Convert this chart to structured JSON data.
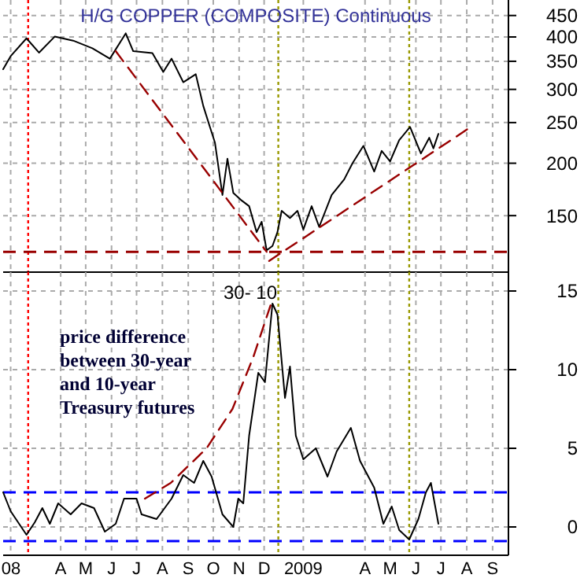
{
  "chart_data": [
    {
      "type": "line",
      "title": "H/G COPPER (COMPOSITE) Continuous",
      "log": "y",
      "grid": true,
      "tick_labels": "y",
      "xlim": [
        "2008-02-06",
        "2009-10-04"
      ],
      "xticks": [
        {
          "value": "2008-02-15",
          "label": null
        },
        {
          "value": "2008-04-15",
          "label": null
        },
        {
          "value": "2008-05-15",
          "label": null
        },
        {
          "value": "2008-06-15",
          "label": null
        },
        {
          "value": "2008-07-15",
          "label": null
        },
        {
          "value": "2008-08-15",
          "label": null
        },
        {
          "value": "2008-09-15",
          "label": null
        },
        {
          "value": "2008-10-15",
          "label": null
        },
        {
          "value": "2008-11-15",
          "label": null
        },
        {
          "value": "2008-12-15",
          "label": null
        },
        {
          "value": "2009-01-31",
          "label": null
        },
        {
          "value": "2009-04-15",
          "label": null
        },
        {
          "value": "2009-05-15",
          "label": null
        },
        {
          "value": "2009-06-15",
          "label": null
        },
        {
          "value": "2009-07-15",
          "label": null
        },
        {
          "value": "2009-08-15",
          "label": null
        },
        {
          "value": "2009-09-15",
          "label": null
        }
      ],
      "ylim": [
        110,
        490
      ],
      "yticks": [
        150,
        200,
        250,
        300,
        350,
        400,
        450
      ],
      "series": [
        {
          "color": "#000000",
          "x": [
            "2008-02-06",
            "2008-02-15",
            "2008-03-05",
            "2008-03-20",
            "2008-04-08",
            "2008-04-30",
            "2008-05-23",
            "2008-06-13",
            "2008-07-02",
            "2008-07-11",
            "2008-08-03",
            "2008-08-16",
            "2008-08-26",
            "2008-09-09",
            "2008-09-24",
            "2008-10-03",
            "2008-10-11",
            "2008-10-17",
            "2008-10-26",
            "2008-11-01",
            "2008-11-08",
            "2008-11-18",
            "2008-11-27",
            "2008-12-06",
            "2008-12-12",
            "2008-12-18",
            "2008-12-25",
            "2008-12-31",
            "2009-01-05",
            "2009-01-15",
            "2009-01-24",
            "2009-01-31",
            "2009-02-10",
            "2009-02-19",
            "2009-03-06",
            "2009-03-21",
            "2009-03-31",
            "2009-04-13",
            "2009-04-26",
            "2009-05-05",
            "2009-05-15",
            "2009-05-26",
            "2009-06-08",
            "2009-06-21",
            "2009-07-01",
            "2009-07-06",
            "2009-07-12"
          ],
          "values": [
            335,
            360,
            397,
            367,
            401,
            392,
            376,
            355,
            408,
            370,
            366,
            330,
            355,
            312,
            326,
            274,
            244,
            224,
            168,
            205,
            170,
            163,
            158,
            137,
            145,
            124,
            127,
            137,
            154,
            148,
            154,
            139,
            158,
            141,
            168,
            183,
            200,
            220,
            191,
            214,
            202,
            227,
            244,
            211,
            230,
            217,
            235
          ]
        },
        {
          "type": "line",
          "color": "#990000",
          "line_style": "dashed",
          "x": [
            "2008-06-20",
            "2008-12-18"
          ],
          "values": [
            370,
            123
          ]
        },
        {
          "type": "line",
          "color": "#990000",
          "line_style": "dashed",
          "x": [
            "2008-12-21",
            "2009-08-17"
          ],
          "values": [
            117,
            242
          ]
        }
      ],
      "ref_lines": [
        {
          "axis": "x",
          "value": "2008-03-07",
          "color": "#ff0000",
          "line_style": "dotted"
        },
        {
          "axis": "x",
          "value": "2009-01-01",
          "color": "#999900",
          "line_style": "dotted"
        },
        {
          "axis": "x",
          "value": "2009-06-07",
          "color": "#999900",
          "line_style": "dotted"
        },
        {
          "axis": "y",
          "value": 123,
          "color": "#990000",
          "line_style": "dashed"
        }
      ]
    },
    {
      "type": "line",
      "grid": true,
      "annotations": [
        "30- 10",
        "price difference between 30-year and 10-year Treasury futures"
      ],
      "xlim": [
        "2008-02-06",
        "2009-10-04"
      ],
      "xticks": [
        {
          "value": "2008-02-15",
          "label": "08"
        },
        {
          "value": "2008-04-15",
          "label": "A"
        },
        {
          "value": "2008-05-15",
          "label": "M"
        },
        {
          "value": "2008-06-15",
          "label": "J"
        },
        {
          "value": "2008-07-15",
          "label": "J"
        },
        {
          "value": "2008-08-15",
          "label": "A"
        },
        {
          "value": "2008-09-15",
          "label": "S"
        },
        {
          "value": "2008-10-15",
          "label": "O"
        },
        {
          "value": "2008-11-15",
          "label": "N"
        },
        {
          "value": "2008-12-15",
          "label": "D"
        },
        {
          "value": "2009-01-31",
          "label": "2009"
        },
        {
          "value": "2009-04-15",
          "label": "A"
        },
        {
          "value": "2009-05-15",
          "label": "M"
        },
        {
          "value": "2009-06-15",
          "label": "J"
        },
        {
          "value": "2009-07-15",
          "label": "J"
        },
        {
          "value": "2009-08-15",
          "label": "A"
        },
        {
          "value": "2009-09-15",
          "label": "S"
        }
      ],
      "ylim": [
        -1.8,
        16.2
      ],
      "yticks": [
        0,
        5,
        10,
        15
      ],
      "series": [
        {
          "color": "#000000",
          "x": [
            "2008-02-06",
            "2008-02-15",
            "2008-03-05",
            "2008-03-15",
            "2008-03-24",
            "2008-04-02",
            "2008-04-12",
            "2008-04-27",
            "2008-05-10",
            "2008-05-25",
            "2008-06-07",
            "2008-06-20",
            "2008-06-30",
            "2008-07-15",
            "2008-07-21",
            "2008-08-08",
            "2008-08-26",
            "2008-09-09",
            "2008-09-22",
            "2008-10-03",
            "2008-10-13",
            "2008-10-26",
            "2008-11-08",
            "2008-11-14",
            "2008-11-20",
            "2008-11-27",
            "2008-12-08",
            "2008-12-16",
            "2008-12-25",
            "2008-12-31",
            "2009-01-09",
            "2009-01-15",
            "2009-01-22",
            "2009-01-31",
            "2009-02-15",
            "2009-03-01",
            "2009-03-12",
            "2009-03-29",
            "2009-04-09",
            "2009-04-26",
            "2009-05-07",
            "2009-05-17",
            "2009-05-26",
            "2009-06-07",
            "2009-06-18",
            "2009-06-27",
            "2009-07-03",
            "2009-07-12"
          ],
          "values": [
            2.2,
            1.0,
            -0.5,
            0.3,
            1.2,
            0.2,
            1.5,
            0.8,
            1.5,
            1.2,
            -0.3,
            0.2,
            1.8,
            1.8,
            0.8,
            0.5,
            1.8,
            3.3,
            2.8,
            4.2,
            3.2,
            0.8,
            0.0,
            1.8,
            1.5,
            5.8,
            9.8,
            9.2,
            14.2,
            13.5,
            8.2,
            10.2,
            5.8,
            4.3,
            5.0,
            3.2,
            4.8,
            6.3,
            4.2,
            2.5,
            0.2,
            1.3,
            -0.2,
            -0.8,
            0.5,
            2.2,
            2.8,
            0.2
          ]
        },
        {
          "type": "line",
          "color": "#990000",
          "line_style": "dashed",
          "x": [
            "2008-07-25",
            "2008-08-25",
            "2008-10-07",
            "2008-11-07",
            "2008-12-02",
            "2008-12-24"
          ],
          "values": [
            1.8,
            2.8,
            5.0,
            7.5,
            10.8,
            14.3
          ]
        }
      ],
      "ref_lines": [
        {
          "axis": "x",
          "value": "2008-03-07",
          "color": "#ff0000",
          "line_style": "dotted"
        },
        {
          "axis": "x",
          "value": "2009-01-01",
          "color": "#999900",
          "line_style": "dotted"
        },
        {
          "axis": "x",
          "value": "2009-06-07",
          "color": "#999900",
          "line_style": "dotted"
        },
        {
          "axis": "y",
          "value": 2.2,
          "color": "#0000ff",
          "line_style": "dashed"
        },
        {
          "axis": "y",
          "value": -0.9,
          "color": "#0000ff",
          "line_style": "dashed"
        }
      ]
    }
  ]
}
